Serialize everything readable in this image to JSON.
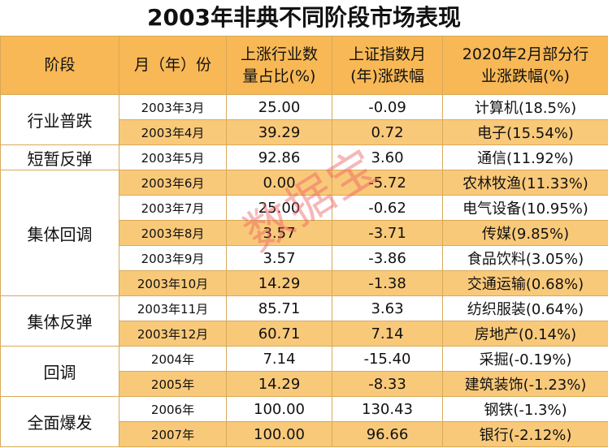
{
  "title": "2003年非典不同阶段市场表现",
  "watermark": "数据宝",
  "headers": {
    "stage": "阶段",
    "month": "月（年）份",
    "ratio_line1": "上涨行业数",
    "ratio_line2": "量占比(%)",
    "index_line1": "上证指数月",
    "index_line2": "(年)涨跌幅",
    "ind2020_line1": "2020年2月部分行",
    "ind2020_line2": "业涨跌幅(%)"
  },
  "stages": [
    "行业普跌",
    "短暂反弹",
    "集体回调",
    "集体反弹",
    "回调",
    "全面爆发"
  ],
  "rows": [
    {
      "month": "2003年3月",
      "ratio": "25.00",
      "index": "-0.09",
      "industry": "计算机(18.5%)"
    },
    {
      "month": "2003年4月",
      "ratio": "39.29",
      "index": "0.72",
      "industry": "电子(15.54%)"
    },
    {
      "month": "2003年5月",
      "ratio": "92.86",
      "index": "3.60",
      "industry": "通信(11.92%)"
    },
    {
      "month": "2003年6月",
      "ratio": "0.00",
      "index": "-5.72",
      "industry": "农林牧渔(11.33%)"
    },
    {
      "month": "2003年7月",
      "ratio": "25.00",
      "index": "-0.62",
      "industry": "电气设备(10.95%)"
    },
    {
      "month": "2003年8月",
      "ratio": "3.57",
      "index": "-3.71",
      "industry": "传媒(9.85%)"
    },
    {
      "month": "2003年9月",
      "ratio": "3.57",
      "index": "-3.86",
      "industry": "食品饮料(3.05%)"
    },
    {
      "month": "2003年10月",
      "ratio": "14.29",
      "index": "-1.38",
      "industry": "交通运输(0.68%)"
    },
    {
      "month": "2003年11月",
      "ratio": "85.71",
      "index": "3.63",
      "industry": "纺织服装(0.64%)"
    },
    {
      "month": "2003年12月",
      "ratio": "60.71",
      "index": "7.14",
      "industry": "房地产(0.14%)"
    },
    {
      "month": "2004年",
      "ratio": "7.14",
      "index": "-15.40",
      "industry": "采掘(-0.19%)"
    },
    {
      "month": "2005年",
      "ratio": "14.29",
      "index": "-8.33",
      "industry": "建筑装饰(-1.23%)"
    },
    {
      "month": "2006年",
      "ratio": "100.00",
      "index": "130.43",
      "industry": "钢铁(-1.3%)"
    },
    {
      "month": "2007年",
      "ratio": "100.00",
      "index": "96.66",
      "industry": "银行(-2.12%)"
    }
  ],
  "colors": {
    "header_bg": "#f7b855",
    "stripe": "#f9c97a",
    "border": "#d9a95a",
    "watermark": "#eb5f5f"
  }
}
